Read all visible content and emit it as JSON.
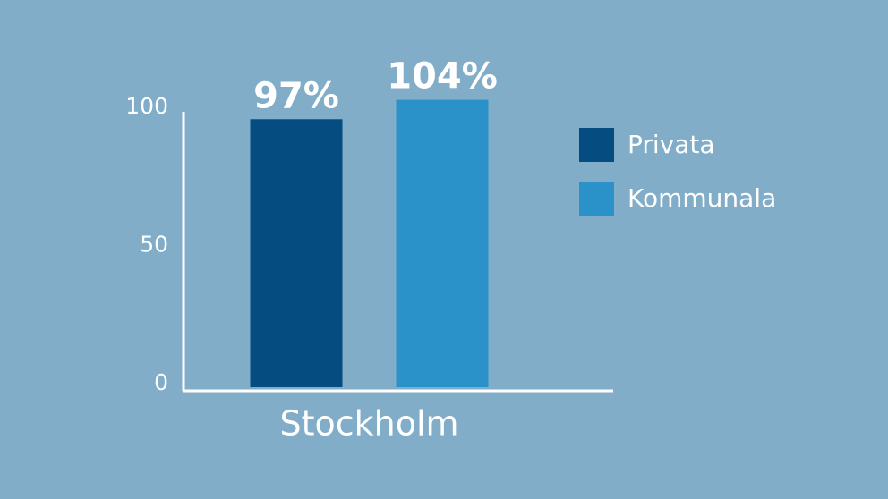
{
  "chart_data": {
    "type": "bar",
    "categories": [
      "Stockholm"
    ],
    "series": [
      {
        "name": "Privata",
        "color": "#054d80",
        "values": [
          97
        ],
        "value_labels": [
          "97%"
        ]
      },
      {
        "name": "Kommunala",
        "color": "#2a91c9",
        "values": [
          104
        ],
        "value_labels": [
          "104%"
        ]
      }
    ],
    "ylim": [
      0,
      100
    ],
    "yticks": [
      0,
      50,
      100
    ],
    "grid": false,
    "legend": "right"
  }
}
